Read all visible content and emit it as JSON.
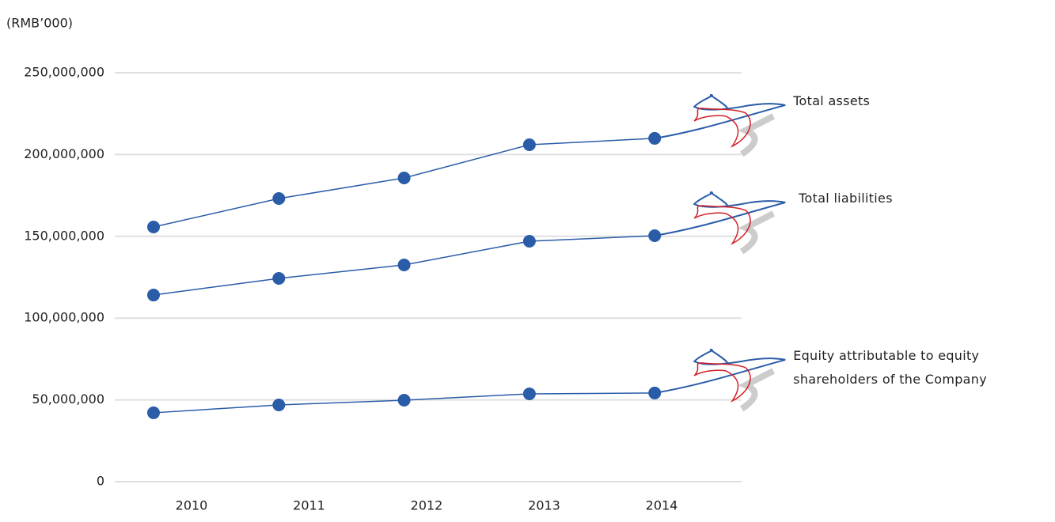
{
  "chart_data": {
    "type": "line",
    "y_axis_label": "(RMB’000)",
    "categories": [
      "2010",
      "2011",
      "2012",
      "2013",
      "2014"
    ],
    "series": [
      {
        "name": "Total assets",
        "color": "#2a5ca8",
        "values": [
          155700000,
          173100000,
          185700000,
          206000000,
          209900000
        ]
      },
      {
        "name": "Total liabilities",
        "color": "#2a5ca8",
        "values": [
          114100000,
          124300000,
          132500000,
          147000000,
          150400000
        ]
      },
      {
        "name": "Equity attributable to equity shareholders of the Company",
        "color": "#2a5ca8",
        "values": [
          42100000,
          46900000,
          49800000,
          53700000,
          54200000
        ]
      }
    ],
    "ylim": [
      0,
      250000000
    ],
    "yticks": [
      0,
      {
        "value": 50000000,
        "label": "50,000,000"
      },
      {
        "value": 100000000,
        "label": "100,000,000"
      },
      {
        "value": 150000000,
        "label": "150,000,000"
      },
      {
        "value": 200000000,
        "label": "200,000,000"
      },
      {
        "value": 250000000,
        "label": "250,000,000"
      }
    ],
    "grid": true
  }
}
